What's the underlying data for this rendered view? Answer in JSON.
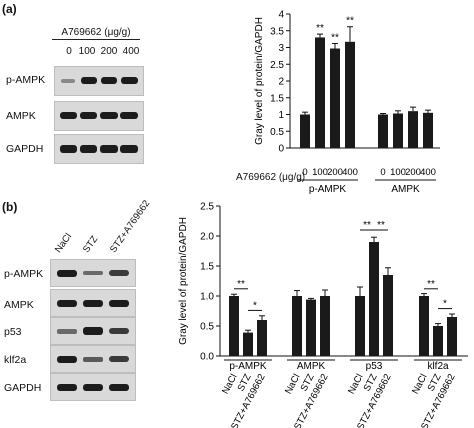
{
  "panel_a": {
    "label": "(a)",
    "treatment_title": "A769662 (μg/g)",
    "doses": [
      "0",
      "100",
      "200",
      "400"
    ],
    "blot_labels": [
      "p-AMPK",
      "AMPK",
      "GAPDH"
    ]
  },
  "panel_b": {
    "label": "(b)",
    "lanes": [
      "NaCl",
      "STZ",
      "STZ+A769662"
    ],
    "blot_labels": [
      "p-AMPK",
      "AMPK",
      "p53",
      "klf2a",
      "GAPDH"
    ]
  },
  "colors": {
    "bar": "#1a1a1a",
    "blot_bg": "#d9d9d9",
    "band": "#1c1c1c"
  },
  "chart_data": [
    {
      "type": "bar",
      "ylabel": "Gray level of protein/GAPDH",
      "ylim": [
        0,
        4
      ],
      "yticks": [
        0,
        0.5,
        1,
        1.5,
        2,
        2.5,
        3,
        3.5,
        4
      ],
      "ytick_labels": [
        "0",
        "0.5",
        "1",
        "1.5",
        "2",
        "2.5",
        "3",
        "3.5",
        "4"
      ],
      "xtitle": "A769662 (μg/g)",
      "groups": [
        {
          "name": "p-AMPK",
          "categories": [
            "0",
            "100",
            "200",
            "400"
          ],
          "values": [
            1.0,
            3.3,
            2.97,
            3.17
          ],
          "errors": [
            0.07,
            0.1,
            0.15,
            0.45
          ],
          "marks": [
            "",
            "**",
            "**",
            "**"
          ]
        },
        {
          "name": "AMPK",
          "categories": [
            "0",
            "100",
            "200",
            "400"
          ],
          "values": [
            1.0,
            1.03,
            1.1,
            1.05
          ],
          "errors": [
            0.03,
            0.08,
            0.12,
            0.08
          ],
          "marks": [
            "",
            "",
            "",
            ""
          ]
        }
      ]
    },
    {
      "type": "bar",
      "ylabel": "Gray level of protein/GAPDH",
      "ylim": [
        0,
        2.5
      ],
      "yticks": [
        0,
        0.5,
        1,
        1.5,
        2,
        2.5
      ],
      "ytick_labels": [
        "0.0",
        "0.5",
        "1.0",
        "1.5",
        "2.0",
        "2.5"
      ],
      "groups": [
        {
          "name": "p-AMPK",
          "categories": [
            "NaCl",
            "STZ",
            "STZ+A769662"
          ],
          "values": [
            1.0,
            0.39,
            0.6
          ],
          "errors": [
            0.03,
            0.04,
            0.07
          ]
        },
        {
          "name": "AMPK",
          "categories": [
            "NaCl",
            "STZ",
            "STZ+A769662"
          ],
          "values": [
            1.0,
            0.94,
            1.0
          ],
          "errors": [
            0.09,
            0.02,
            0.1
          ]
        },
        {
          "name": "p53",
          "categories": [
            "NaCl",
            "STZ",
            "STZ+A769662"
          ],
          "values": [
            1.0,
            1.9,
            1.35
          ],
          "errors": [
            0.15,
            0.08,
            0.12
          ]
        },
        {
          "name": "klf2a",
          "categories": [
            "NaCl",
            "STZ",
            "STZ+A769662"
          ],
          "values": [
            1.0,
            0.5,
            0.65
          ],
          "errors": [
            0.04,
            0.04,
            0.05
          ]
        }
      ],
      "significance": [
        {
          "group": 0,
          "from": 0,
          "to": 1,
          "y": 1.12,
          "label": "**"
        },
        {
          "group": 0,
          "from": 1,
          "to": 2,
          "y": 0.76,
          "label": "*"
        },
        {
          "group": 2,
          "from": 0,
          "to": 1,
          "y": 2.1,
          "label": "**"
        },
        {
          "group": 2,
          "from": 1,
          "to": 2,
          "y": 2.1,
          "label": "**"
        },
        {
          "group": 3,
          "from": 0,
          "to": 1,
          "y": 1.12,
          "label": "**"
        },
        {
          "group": 3,
          "from": 1,
          "to": 2,
          "y": 0.79,
          "label": "*"
        }
      ]
    }
  ]
}
